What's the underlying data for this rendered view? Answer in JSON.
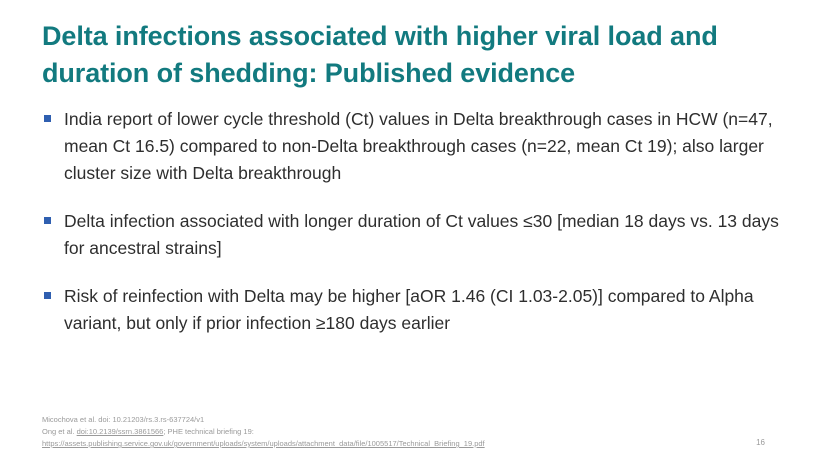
{
  "slide": {
    "title": "Delta infections associated with higher viral load and duration of shedding: Published evidence",
    "bullets": [
      "India report of lower cycle threshold (Ct) values in Delta breakthrough cases in HCW (n=47, mean Ct 16.5) compared to non-Delta breakthrough cases (n=22, mean Ct 19); also larger cluster size with Delta breakthrough",
      "Delta infection associated with longer duration of Ct values ≤30 [median 18 days vs. 13 days for ancestral strains]",
      "Risk of reinfection with Delta may be higher [aOR 1.46 (CI 1.03-2.05)] compared to Alpha variant, but only if prior infection ≥180 days earlier"
    ],
    "references": {
      "line1": "Micochova et al. doi: 10.21203/rs.3.rs-637724/v1",
      "line2_prefix": "Ong et al. ",
      "line2_link": "doi:10.2139/ssrn.3861566",
      "line2_suffix": "; PHE technical briefing 19:",
      "line3_link": "https://assets.publishing.service.gov.uk/government/uploads/system/uploads/attachment_data/file/1005517/Technical_Briefing_19.pdf"
    },
    "page_number": "16",
    "colors": {
      "title": "#127a7f",
      "bullet_marker": "#2f5fb0",
      "body_text": "#2e2e2e",
      "reference_text": "#9a9a9a"
    }
  }
}
